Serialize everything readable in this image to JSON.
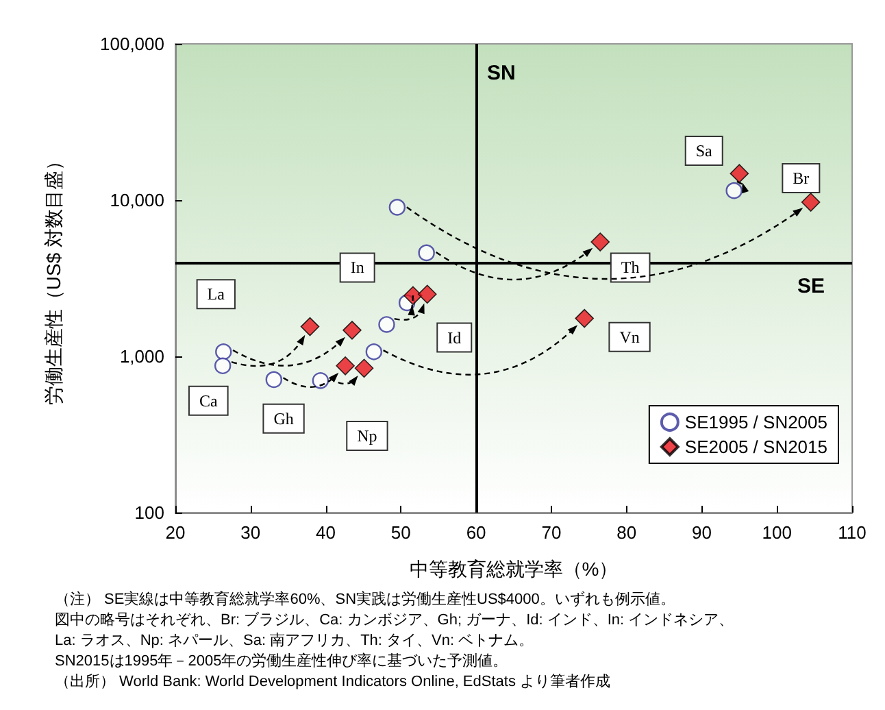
{
  "chart_data": {
    "type": "scatter",
    "xlabel": "中等教育総就学率（%）",
    "ylabel": "労働生産性（US$ 対数目盛）",
    "xlim": [
      20,
      110
    ],
    "xticks": [
      20,
      30,
      40,
      50,
      60,
      70,
      80,
      90,
      100,
      110
    ],
    "ylim": [
      100,
      100000
    ],
    "yticks": [
      {
        "value": 100,
        "label": "100"
      },
      {
        "value": 1000,
        "label": "1,000"
      },
      {
        "value": 10000,
        "label": "10,000"
      },
      {
        "value": 100000,
        "label": "100,000"
      }
    ],
    "log": "y",
    "grid": false,
    "legend": "bottom right",
    "series": [
      {
        "name": "SE1995 / SN2005",
        "color": "#333399",
        "marker": "circle",
        "x": [
          49.5,
          53.4,
          50.8,
          48.1,
          46.4,
          26.4,
          26.3,
          33.1,
          39.3,
          94.3
        ],
        "values": [
          9000,
          4600,
          2200,
          1600,
          1070,
          1070,
          870,
          710,
          700,
          11500
        ]
      },
      {
        "name": "SE2005 / SN2015",
        "color": "#e8141b",
        "marker": "diamond",
        "x": [
          104.5,
          76.5,
          51.6,
          53.5,
          74.4,
          43.5,
          37.9,
          42.6,
          45.1,
          95.0
        ],
        "values": [
          9700,
          5400,
          2450,
          2500,
          1750,
          1470,
          1550,
          870,
          840,
          14800
        ]
      }
    ],
    "ref_lines": [
      {
        "axis": "x",
        "value": 60,
        "label": "SN",
        "color": "#000000",
        "line_style": "solid"
      },
      {
        "axis": "y",
        "value": 4000,
        "label": "SE",
        "color": "#000000",
        "line_style": "solid"
      }
    ],
    "annotations": [
      {
        "text": "Br",
        "x": 103.2,
        "y": 13800
      },
      {
        "text": "Th",
        "x": 80.5,
        "y": 3700
      },
      {
        "text": "In",
        "x": 44.2,
        "y": 3700
      },
      {
        "text": "Id",
        "x": 57.1,
        "y": 1320
      },
      {
        "text": "Vn",
        "x": 80.4,
        "y": 1330
      },
      {
        "text": "La",
        "x": 25.4,
        "y": 2500
      },
      {
        "text": "Ca",
        "x": 24.4,
        "y": 520
      },
      {
        "text": "Gh",
        "x": 34.4,
        "y": 400
      },
      {
        "text": "Np",
        "x": 45.5,
        "y": 310
      },
      {
        "text": "Sa",
        "x": 90.3,
        "y": 20700
      },
      "（注） SE実線は中等教育総就学率60%、SN実践は労働生産性US$4000。いずれも例示値。",
      "図中の略号はそれぞれ、Br: ブラジル、Ca: カンボジア、Gh; ガーナ、Id: インド、In: インドネシア、",
      "La: ラオス、Np: ネパール、Sa: 南アフリカ、Th: タイ、Vn: ベトナム。",
      "SN2015は1995年－2005年の労働生産性伸び率に基づいた予測値。",
      "（出所） World Bank: World Development Indicators Online, EdStats より筆者作成"
    ]
  }
}
